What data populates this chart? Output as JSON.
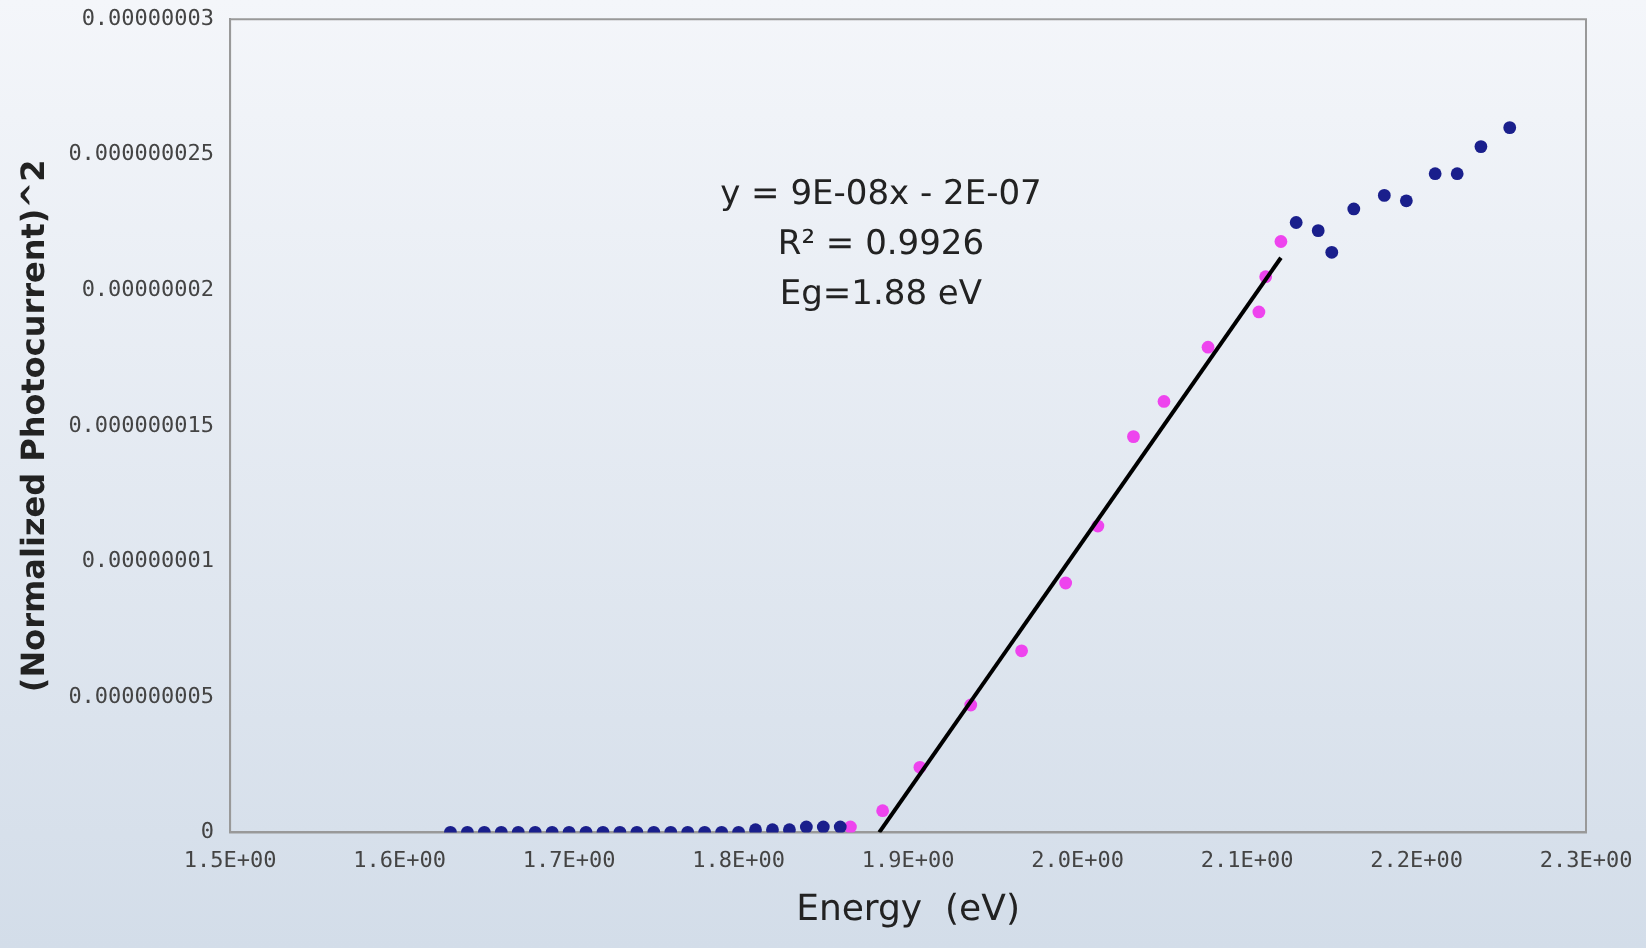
{
  "chart_data": {
    "type": "scatter",
    "xlabel": "Energy  (eV)",
    "ylabel": "(Normalized Photocurrent)^2",
    "annotations": [
      "y = 9E-08x - 2E-07",
      "R² = 0.9926",
      "Eg=1.88 eV"
    ],
    "xlim": [
      1.5,
      2.3
    ],
    "ylim": [
      0,
      3e-08
    ],
    "xticks": [
      {
        "value": 1.5,
        "label": "1.5E+00"
      },
      {
        "value": 1.6,
        "label": "1.6E+00"
      },
      {
        "value": 1.7,
        "label": "1.7E+00"
      },
      {
        "value": 1.8,
        "label": "1.8E+00"
      },
      {
        "value": 1.9,
        "label": "1.9E+00"
      },
      {
        "value": 2.0,
        "label": "2.0E+00"
      },
      {
        "value": 2.1,
        "label": "2.1E+00"
      },
      {
        "value": 2.2,
        "label": "2.2E+00"
      },
      {
        "value": 2.3,
        "label": "2.3E+00"
      }
    ],
    "yticks": [
      0,
      {
        "value": 5e-09,
        "label": "0.000000005"
      },
      {
        "value": 1e-08,
        "label": "0.00000001"
      },
      {
        "value": 1.5e-08,
        "label": "0.000000015"
      },
      {
        "value": 2e-08,
        "label": "0.00000002"
      },
      {
        "value": 2.5e-08,
        "label": "0.000000025"
      },
      {
        "value": 3e-08,
        "label": "0.00000003"
      }
    ],
    "grid": false,
    "legend": false,
    "marker": "circle",
    "series": [
      {
        "color": "#1a1f8c",
        "x": [
          1.63,
          1.64,
          1.65,
          1.66,
          1.67,
          1.68,
          1.69,
          1.7,
          1.71,
          1.72,
          1.73,
          1.74,
          1.75,
          1.76,
          1.77,
          1.78,
          1.79,
          1.8,
          1.81,
          1.82,
          1.83,
          1.84,
          1.85,
          1.86,
          2.129,
          2.142,
          2.15,
          2.163,
          2.181,
          2.194,
          2.211,
          2.224,
          2.238,
          2.255
        ],
        "values": [
          0,
          0,
          0,
          0,
          0,
          0,
          0,
          0,
          0,
          0,
          0,
          0,
          0,
          0,
          0,
          0,
          0,
          0,
          1e-10,
          1e-10,
          1e-10,
          2e-10,
          2e-10,
          2e-10,
          2.25e-08,
          2.22e-08,
          2.14e-08,
          2.3e-08,
          2.35e-08,
          2.33e-08,
          2.43e-08,
          2.43e-08,
          2.53e-08,
          2.6e-08
        ]
      },
      {
        "color": "#ee44ee",
        "x": [
          1.866,
          1.885,
          1.907,
          1.937,
          1.967,
          1.993,
          2.012,
          2.033,
          2.051,
          2.077,
          2.107,
          2.111,
          2.12
        ],
        "values": [
          2e-10,
          8e-10,
          2.4e-09,
          4.7e-09,
          6.7e-09,
          9.2e-09,
          1.13e-08,
          1.46e-08,
          1.59e-08,
          1.79e-08,
          1.92e-08,
          2.05e-08,
          2.18e-08
        ]
      },
      {
        "type": "line",
        "color": "#000000",
        "marker": "none",
        "x": [
          1.883,
          2.12
        ],
        "values": [
          0,
          2.12e-08
        ]
      }
    ]
  }
}
